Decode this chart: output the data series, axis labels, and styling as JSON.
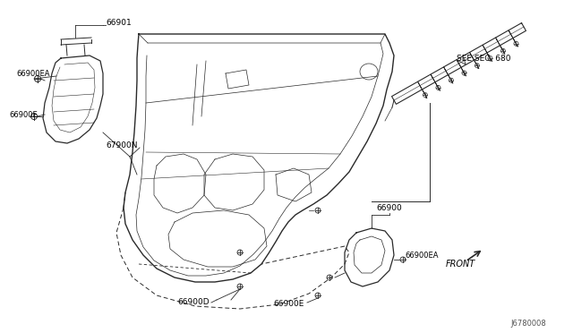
{
  "bg_color": "#ffffff",
  "line_color": "#2a2a2a",
  "figsize": [
    6.4,
    3.72
  ],
  "dpi": 100,
  "labels": {
    "part_66901": "66901",
    "clip_66900EA_tl": "66900EA",
    "clip_66900E_tl": "66900E",
    "bracket_67900N": "67900N",
    "clip_66900D": "66900D",
    "clip_66900E_bot": "66900E",
    "see_sec": "SEE SEC. 680",
    "part_66900": "66900",
    "clip_66900EA_br": "66900EA",
    "front": "FRONT",
    "diagram_code": "J6780008"
  }
}
